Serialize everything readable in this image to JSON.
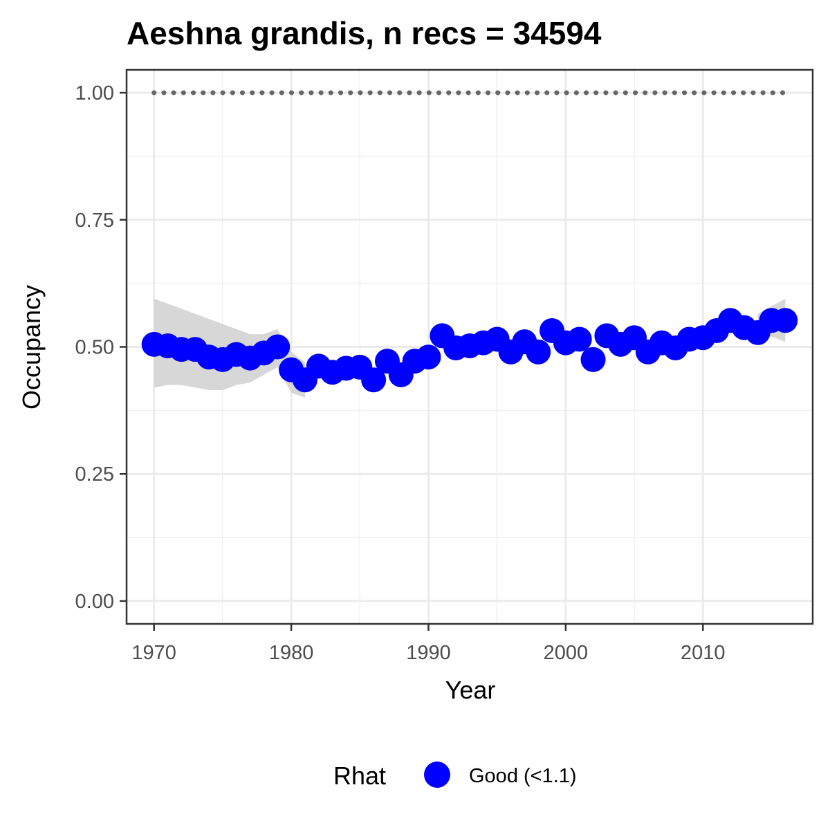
{
  "chart_data": {
    "type": "scatter",
    "title": "Aeshna grandis, n recs = 34594",
    "xlabel": "Year",
    "ylabel": "Occupancy",
    "xlim": [
      1968,
      2018
    ],
    "ylim": [
      -0.045,
      1.045
    ],
    "x_ticks": [
      1970,
      1980,
      1990,
      2000,
      2010
    ],
    "x_tick_labels": [
      "1970",
      "1980",
      "1990",
      "2000",
      "2010"
    ],
    "y_ticks": [
      0,
      0.25,
      0.5,
      0.75,
      1
    ],
    "y_tick_labels": [
      "0.00",
      "0.25",
      "0.50",
      "0.75",
      "1.00"
    ],
    "grid": true,
    "legend": {
      "title": "Rhat",
      "position": "bottom",
      "entries": [
        {
          "label": "Good (<1.1)",
          "color": "#0000ff"
        }
      ]
    },
    "series": [
      {
        "kind": "points",
        "color": "#0000ff",
        "x": [
          1970,
          1971,
          1972,
          1973,
          1974,
          1975,
          1976,
          1977,
          1978,
          1979,
          1980,
          1981,
          1982,
          1983,
          1984,
          1985,
          1986,
          1987,
          1988,
          1989,
          1990,
          1991,
          1992,
          1993,
          1994,
          1995,
          1996,
          1997,
          1998,
          1999,
          2000,
          2001,
          2002,
          2003,
          2004,
          2005,
          2006,
          2007,
          2008,
          2009,
          2010,
          2011,
          2012,
          2013,
          2014,
          2015,
          2016
        ],
        "y": [
          0.505,
          0.502,
          0.495,
          0.495,
          0.48,
          0.475,
          0.485,
          0.478,
          0.488,
          0.5,
          0.455,
          0.435,
          0.462,
          0.45,
          0.458,
          0.46,
          0.435,
          0.472,
          0.445,
          0.472,
          0.48,
          0.522,
          0.498,
          0.502,
          0.508,
          0.515,
          0.49,
          0.51,
          0.49,
          0.532,
          0.508,
          0.515,
          0.475,
          0.522,
          0.505,
          0.518,
          0.49,
          0.508,
          0.498,
          0.515,
          0.518,
          0.532,
          0.552,
          0.538,
          0.528,
          0.552,
          0.552
        ]
      },
      {
        "kind": "ribbon",
        "color": "#d3d3d3",
        "x": [
          1970,
          1971,
          1972,
          1973,
          1974,
          1975,
          1976,
          1977,
          1978,
          1979,
          1980,
          1981,
          2014,
          2015,
          2016
        ],
        "lower": [
          0.42,
          0.425,
          0.425,
          0.42,
          0.415,
          0.415,
          0.425,
          0.43,
          0.445,
          0.46,
          0.41,
          0.4,
          0.52,
          0.52,
          0.51
        ],
        "upper": [
          0.595,
          0.585,
          0.575,
          0.565,
          0.555,
          0.545,
          0.535,
          0.525,
          0.525,
          0.535,
          0.49,
          0.47,
          0.565,
          0.58,
          0.595
        ]
      },
      {
        "kind": "dotted-line",
        "color": "#666666",
        "x": [
          1970,
          2016
        ],
        "y": [
          1.0,
          1.0
        ]
      }
    ]
  }
}
